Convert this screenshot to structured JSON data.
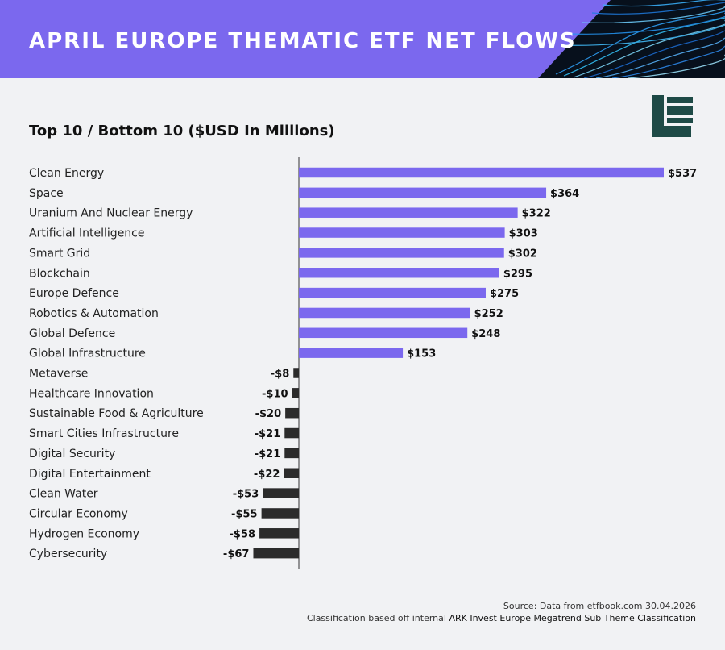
{
  "header": {
    "title": "APRIL EUROPE THEMATIC ETF NET FLOWS"
  },
  "brand": {
    "logo_icon": "etfbook-e-logo-icon",
    "logo_color": "#1e4a46"
  },
  "colors": {
    "positive": "#7b68ee",
    "negative": "#2b2b2b",
    "banner": "#7b68ee"
  },
  "chart_data": {
    "type": "bar",
    "orientation": "horizontal",
    "title": "Top 10 / Bottom 10 ($USD In Millions)",
    "categories": [
      "Clean Energy",
      "Space",
      "Uranium And Nuclear Energy",
      "Artificial Intelligence",
      "Smart Grid",
      "Blockchain",
      "Europe Defence",
      "Robotics & Automation",
      "Global Defence",
      "Global Infrastructure",
      "Metaverse",
      "Healthcare Innovation",
      "Sustainable Food & Agriculture",
      "Smart Cities Infrastructure",
      "Digital Security",
      "Digital Entertainment",
      "Clean Water",
      "Circular Economy",
      "Hydrogen Economy",
      "Cybersecurity"
    ],
    "values": [
      537,
      364,
      322,
      303,
      302,
      295,
      275,
      252,
      248,
      153,
      -8,
      -10,
      -20,
      -21,
      -21,
      -22,
      -53,
      -55,
      -58,
      -67
    ],
    "value_labels": [
      "$537",
      "$364",
      "$322",
      "$303",
      "$302",
      "$295",
      "$275",
      "$252",
      "$248",
      "$153",
      "-$8",
      "-$10",
      "-$20",
      "-$21",
      "-$21",
      "-$22",
      "-$53",
      "-$55",
      "-$58",
      "-$67"
    ],
    "xlabel": "",
    "ylabel": "",
    "grid": false,
    "legend": "none"
  },
  "footer": {
    "source": "Source: Data from etfbook.com 30.04.2026",
    "classification_prefix": "Classification based off internal ",
    "classification_bold": "ARK Invest Europe Megatrend Sub Theme Classification"
  }
}
